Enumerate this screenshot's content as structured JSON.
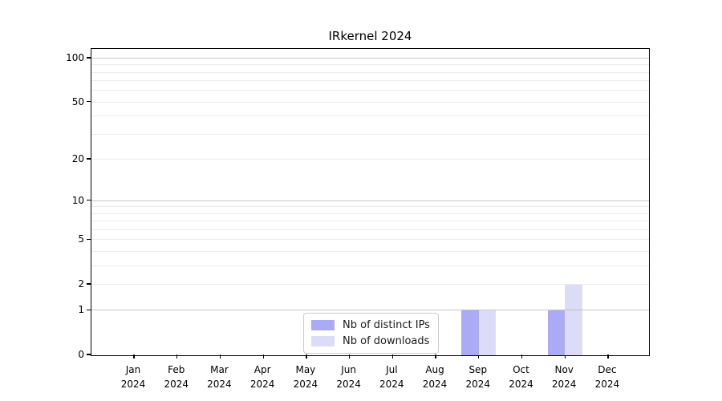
{
  "title": "IRkernel 2024",
  "chart_data": {
    "type": "bar",
    "title": "IRkernel 2024",
    "categories": [
      "Jan",
      "Feb",
      "Mar",
      "Apr",
      "May",
      "Jun",
      "Jul",
      "Aug",
      "Sep",
      "Oct",
      "Nov",
      "Dec"
    ],
    "x_year_line": "2024",
    "series": [
      {
        "name": "Nb of distinct IPs",
        "color": "#abaaf5",
        "values": [
          0,
          0,
          0,
          0,
          0,
          0,
          0,
          0,
          1,
          0,
          1,
          0
        ]
      },
      {
        "name": "Nb of downloads",
        "color": "#dcdcf8",
        "values": [
          0,
          0,
          0,
          0,
          0,
          0,
          0,
          0,
          1,
          0,
          2,
          0
        ]
      }
    ],
    "yscale": "log1p",
    "ylim": [
      0,
      115
    ],
    "yticks_labeled": [
      0,
      1,
      2,
      5,
      10,
      20,
      50,
      100
    ],
    "gridlines_major": [
      1,
      10,
      100
    ],
    "gridlines_minor": [
      2,
      3,
      4,
      5,
      6,
      7,
      8,
      9,
      20,
      30,
      40,
      50,
      60,
      70,
      80,
      90
    ],
    "grid": true,
    "legend_position": "bottom-center"
  },
  "colors": {
    "grid_major": "#b2b2b2",
    "grid_minor": "#ebebeb",
    "axis": "#000000",
    "background": "#ffffff"
  }
}
